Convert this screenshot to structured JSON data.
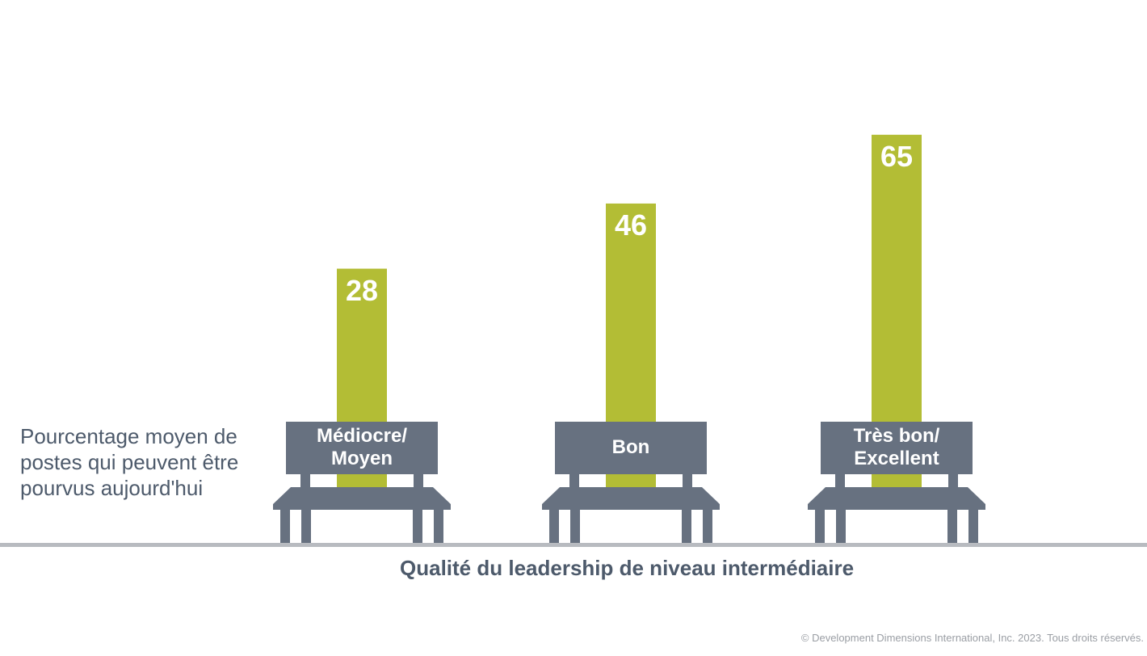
{
  "chart_data": {
    "type": "bar",
    "categories": [
      [
        "Médiocre/",
        "Moyen"
      ],
      [
        "Bon"
      ],
      [
        "Très bon/",
        "Excellent"
      ]
    ],
    "values": [
      28,
      46,
      65
    ],
    "value_labels": [
      "28",
      "46",
      "65"
    ],
    "ylabel_lines": [
      "Pourcentage moyen de",
      "postes qui peuvent être",
      "pourvus aujourd'hui"
    ],
    "xlabel": "Qualité du leadership de niveau intermédiaire",
    "colors": {
      "bar": "#b3bd35",
      "bench": "#677180",
      "axis": "#b8bbc0",
      "text": "#4d5a6b"
    }
  },
  "footer": {
    "copyright": "© Development Dimensions International, Inc. 2023. Tous droits réservés."
  }
}
